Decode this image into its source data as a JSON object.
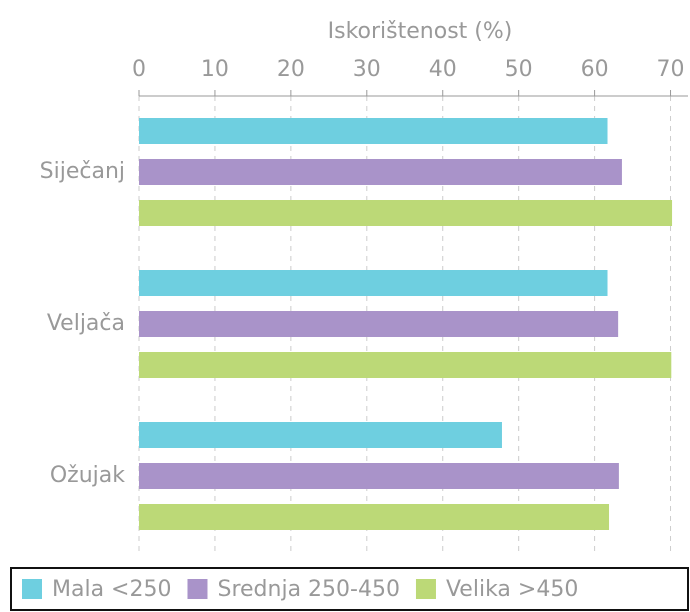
{
  "chart_data": {
    "type": "barh",
    "x_label": "Iskorištenost (%)",
    "categories": [
      "Siječanj",
      "Veljača",
      "Ožujak"
    ],
    "series": [
      {
        "name": "Mala <250",
        "color": "#6ecfe0",
        "values": [
          61.7,
          61.7,
          47.8
        ]
      },
      {
        "name": "Srednja 250-450",
        "color": "#a993c9",
        "values": [
          63.6,
          63.1,
          63.2
        ]
      },
      {
        "name": "Velika >450",
        "color": "#bcd977",
        "values": [
          70.2,
          70.1,
          61.9
        ]
      }
    ],
    "xlim": [
      0,
      72.3
    ],
    "xticks": [
      0,
      10,
      20,
      30,
      40,
      50,
      60,
      70
    ],
    "grid": true,
    "legend": "bottom"
  }
}
